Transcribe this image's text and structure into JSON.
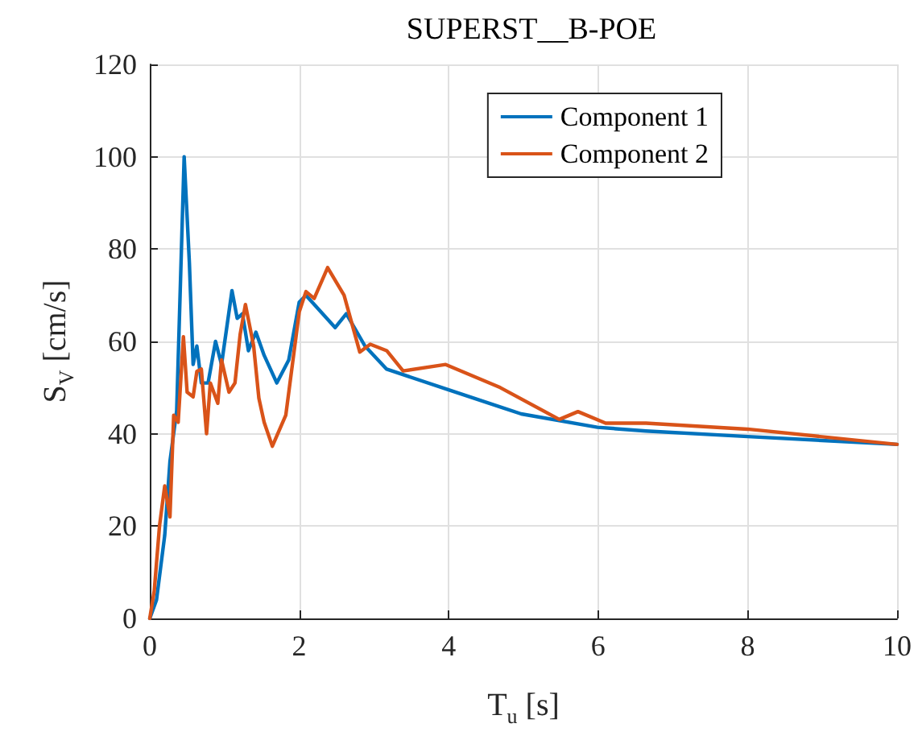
{
  "chart_data": {
    "type": "line",
    "title": "SUPERST__B-POE",
    "xlabel": "T$_{u}$ [s]",
    "ylabel": "S$_{V}$ [cm/s]",
    "xlim": [
      0,
      10
    ],
    "xticks": [
      0,
      2,
      4,
      6,
      8,
      10
    ],
    "ylim": [
      0,
      120
    ],
    "yticks": [
      0,
      20,
      40,
      60,
      80,
      100,
      120
    ],
    "grid": true,
    "legend": "top right",
    "marker": "none",
    "line_style": "solid",
    "series": [
      {
        "name": "Component 1",
        "color": "#0072bd",
        "x": [
          0,
          0.09,
          0.2,
          0.27,
          0.36,
          0.46,
          0.53,
          0.58,
          0.63,
          0.69,
          0.78,
          0.88,
          0.96,
          1.1,
          1.17,
          1.24,
          1.32,
          1.42,
          1.53,
          1.7,
          1.86,
          2.0,
          2.09,
          2.48,
          2.63,
          2.88,
          3.17,
          4.0,
          4.97,
          5.99,
          6.64,
          8.0,
          10.0
        ],
        "values": [
          0,
          4,
          18,
          34,
          45,
          100,
          77,
          55,
          59,
          51,
          51,
          60,
          55,
          71,
          65,
          66,
          58,
          62,
          57,
          51,
          56,
          68.5,
          70,
          63,
          66,
          59,
          54,
          49.5,
          44.3,
          41.4,
          40.6,
          39.4,
          37.7
        ]
      },
      {
        "name": "Component 2",
        "color": "#d95319",
        "x": [
          0,
          0.06,
          0.13,
          0.2,
          0.27,
          0.32,
          0.38,
          0.45,
          0.5,
          0.58,
          0.63,
          0.69,
          0.76,
          0.81,
          0.91,
          0.96,
          1.06,
          1.14,
          1.21,
          1.28,
          1.39,
          1.46,
          1.53,
          1.64,
          1.82,
          2.0,
          2.09,
          2.2,
          2.38,
          2.6,
          2.81,
          2.95,
          3.17,
          3.39,
          3.96,
          4.69,
          5.48,
          5.73,
          6.1,
          6.64,
          8.0,
          10.0
        ],
        "values": [
          0,
          6,
          20,
          28.7,
          22,
          44,
          42.5,
          61,
          49,
          48,
          53.5,
          54,
          40,
          51,
          46.6,
          56,
          49,
          51,
          61.6,
          68,
          59,
          47.7,
          42.5,
          37.3,
          44,
          66.4,
          70.8,
          69.3,
          76,
          70,
          57.7,
          59.4,
          58,
          53.6,
          55,
          50,
          43.1,
          44.8,
          42.3,
          42.3,
          41,
          37.7
        ]
      }
    ]
  }
}
